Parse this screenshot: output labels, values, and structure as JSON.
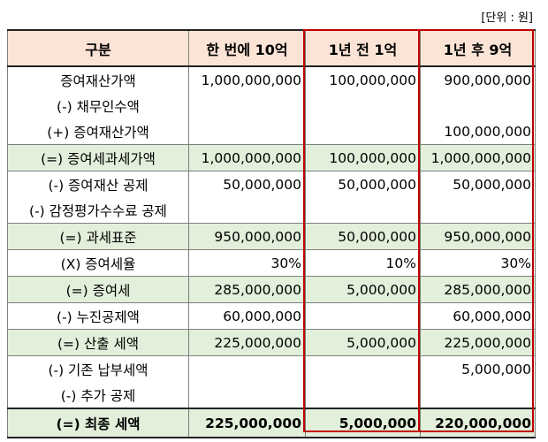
{
  "unit_label": "[단위 : 원]",
  "headers": [
    "구분",
    "한 번에 10억",
    "1년 전 1억",
    "1년 후 9억"
  ],
  "rows": [
    {
      "label": "증여재산가액",
      "a": "1,000,000,000",
      "b": "100,000,000",
      "c": "900,000,000",
      "shade": false
    },
    {
      "label": "(-) 채무인수액",
      "a": "",
      "b": "",
      "c": "",
      "shade": false
    },
    {
      "label": "(+) 증여재산가액",
      "a": "",
      "b": "",
      "c": "100,000,000",
      "shade": false
    },
    {
      "label": "(=) 증여세과세가액",
      "a": "1,000,000,000",
      "b": "100,000,000",
      "c": "1,000,000,000",
      "shade": true
    },
    {
      "label": "(-) 증여재산 공제",
      "a": "50,000,000",
      "b": "50,000,000",
      "c": "50,000,000",
      "shade": false
    },
    {
      "label": "(-) 감정평가수수료 공제",
      "a": "",
      "b": "",
      "c": "",
      "shade": false
    },
    {
      "label": "(=) 과세표준",
      "a": "950,000,000",
      "b": "50,000,000",
      "c": "950,000,000",
      "shade": true
    },
    {
      "label": "(X) 증여세율",
      "a": "30%",
      "b": "10%",
      "c": "30%",
      "shade": false
    },
    {
      "label": "(=) 증여세",
      "a": "285,000,000",
      "b": "5,000,000",
      "c": "285,000,000",
      "shade": true
    },
    {
      "label": "(-) 누진공제액",
      "a": "60,000,000",
      "b": "",
      "c": "60,000,000",
      "shade": false
    },
    {
      "label": "(=) 산출 세액",
      "a": "225,000,000",
      "b": "5,000,000",
      "c": "225,000,000",
      "shade": true
    },
    {
      "label": "(-) 기존 납부세액",
      "a": "",
      "b": "",
      "c": "5,000,000",
      "shade": false
    },
    {
      "label": "(-) 추가 공제",
      "a": "",
      "b": "",
      "c": "",
      "shade": false
    }
  ],
  "final": {
    "label": "(=) 최종 세액",
    "a": "225,000,000",
    "b": "5,000,000",
    "c": "220,000,000"
  }
}
